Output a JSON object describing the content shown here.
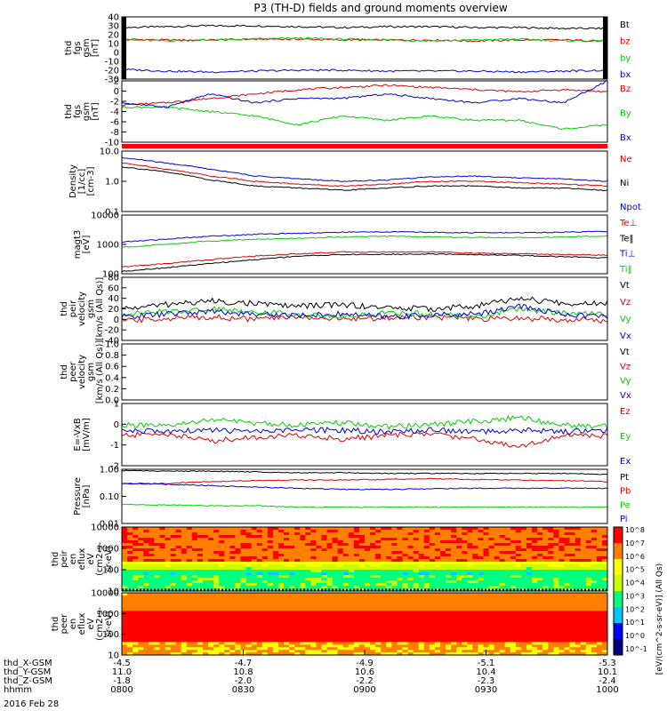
{
  "title": "P3 (TH-D) fields and ground moments overview",
  "date": "2016 Feb 28",
  "colors": {
    "black": "#000000",
    "red": "#e00000",
    "green": "#00d000",
    "blue": "#0000e0"
  },
  "colorbar_labels": [
    "10^8",
    "10^7",
    "10^6",
    "10^5",
    "10^4",
    "10^3",
    "10^2",
    "10^1",
    "10^0",
    "10^-1"
  ],
  "colorbar_unit": "[eV/(cm^2-s-sr-eV)] (All Qs)",
  "xaxis": {
    "rows": [
      {
        "label": "thd_X-GSM",
        "values": [
          "-4.5",
          "-4.7",
          "-4.9",
          "-5.1",
          "-5.3"
        ]
      },
      {
        "label": "thd_Y-GSM",
        "values": [
          "11.0",
          "10.8",
          "10.6",
          "10.4",
          "10.1"
        ]
      },
      {
        "label": "thd_Z-GSM",
        "values": [
          "-1.8",
          "-2.0",
          "-2.2",
          "-2.3",
          "-2.4"
        ]
      },
      {
        "label": "hhmm",
        "values": [
          "0800",
          "0830",
          "0900",
          "0930",
          "1000"
        ]
      }
    ]
  },
  "chart_data": [
    {
      "type": "line",
      "ylabel": [
        "thd",
        "fgs",
        "gsm",
        "[nT]"
      ],
      "ylim": [
        -30,
        40
      ],
      "ticks": [
        "40",
        "30",
        "20",
        "10",
        "0",
        "-10",
        "-20",
        "-30"
      ],
      "series": [
        {
          "name": "Bt",
          "color": "black",
          "values": [
            28,
            29,
            30,
            30,
            29,
            28,
            29,
            29,
            28,
            28,
            27,
            27
          ]
        },
        {
          "name": "bz",
          "color": "red",
          "values": [
            15,
            14,
            14,
            15,
            15,
            14,
            14,
            14,
            13,
            14,
            14,
            13
          ]
        },
        {
          "name": "by",
          "color": "green",
          "values": [
            14,
            13,
            14,
            15,
            16,
            15,
            14,
            13,
            14,
            15,
            13,
            13
          ]
        },
        {
          "name": "bx",
          "color": "blue",
          "values": [
            -19,
            -21,
            -22,
            -21,
            -20,
            -20,
            -21,
            -21,
            -21,
            -22,
            -21,
            -20
          ]
        }
      ]
    },
    {
      "type": "line",
      "ylabel": [
        "thd",
        "fgs",
        "gsm",
        "[nT]"
      ],
      "ylim": [
        -11,
        3
      ],
      "ticks": [
        "2",
        "0",
        "-2",
        "-4",
        "-6",
        "-8",
        "-10"
      ],
      "series": [
        {
          "name": "Bz",
          "color": "red",
          "values": [
            -2.5,
            -2,
            -1,
            0,
            1,
            1.5,
            2,
            1.5,
            1,
            0.5,
            1,
            0.5
          ]
        },
        {
          "name": "By",
          "color": "green",
          "values": [
            -3,
            -3,
            -4,
            -5,
            -7,
            -5,
            -6,
            -5,
            -6,
            -6,
            -8,
            -7
          ]
        },
        {
          "name": "Bx",
          "color": "blue",
          "values": [
            -2,
            -3,
            0,
            -2,
            -1,
            -1,
            0,
            -1,
            -2,
            -1,
            -2,
            3
          ]
        }
      ]
    },
    {
      "type": "line",
      "ylabel": [
        "Density",
        "[1/cc]",
        "[cm-3]"
      ],
      "ylim": [
        0.1,
        10
      ],
      "scale": "log",
      "ticks": [
        "10.0",
        "1.0",
        "0.1"
      ],
      "series": [
        {
          "name": "Ne",
          "color": "red",
          "values": [
            4,
            2.5,
            1.5,
            1,
            0.8,
            0.7,
            0.8,
            1,
            1,
            0.9,
            0.8,
            0.7
          ]
        },
        {
          "name": "Ni",
          "color": "black",
          "values": [
            3,
            2,
            1.1,
            0.7,
            0.6,
            0.5,
            0.6,
            0.7,
            0.7,
            0.6,
            0.6,
            0.5
          ]
        },
        {
          "name": "Npot",
          "color": "blue",
          "values": [
            6,
            4,
            2.5,
            1.5,
            1.2,
            1,
            1.1,
            1.4,
            1.5,
            1.3,
            1.2,
            1
          ]
        }
      ]
    },
    {
      "type": "line",
      "ylabel": [
        "magt3",
        "[eV]"
      ],
      "ylim": [
        100,
        10000
      ],
      "scale": "log",
      "ticks": [
        "10000",
        "1000",
        "100"
      ],
      "series": [
        {
          "name": "Te⊥",
          "color": "red",
          "values": [
            170,
            220,
            300,
            400,
            480,
            550,
            550,
            560,
            500,
            480,
            450,
            430
          ]
        },
        {
          "name": "Te‖",
          "color": "black",
          "values": [
            120,
            160,
            220,
            300,
            400,
            450,
            460,
            470,
            450,
            420,
            380,
            350
          ]
        },
        {
          "name": "Ti⊥",
          "color": "blue",
          "values": [
            1200,
            1500,
            1900,
            2200,
            2400,
            2600,
            2700,
            2600,
            2500,
            2500,
            2600,
            2800
          ]
        },
        {
          "name": "Ti‖",
          "color": "green",
          "values": [
            800,
            1000,
            1300,
            1500,
            1600,
            1800,
            1900,
            1800,
            1700,
            1700,
            1800,
            1900
          ]
        }
      ]
    },
    {
      "type": "line",
      "ylabel": [
        "thd",
        "peir",
        "velocity",
        "gsm",
        "[km/s (All Qs)]"
      ],
      "ylim": [
        -40,
        80
      ],
      "ticks": [
        "80",
        "60",
        "40",
        "20",
        "0",
        "-20",
        "-40"
      ],
      "series": [
        {
          "name": "Vt",
          "color": "black",
          "values": [
            20,
            28,
            35,
            30,
            25,
            28,
            22,
            20,
            25,
            40,
            30,
            32
          ]
        },
        {
          "name": "Vz",
          "color": "red",
          "values": [
            -3,
            2,
            5,
            0,
            5,
            0,
            3,
            5,
            0,
            2,
            0,
            -2
          ]
        },
        {
          "name": "Vy",
          "color": "green",
          "values": [
            10,
            15,
            20,
            15,
            10,
            5,
            12,
            10,
            5,
            20,
            12,
            10
          ]
        },
        {
          "name": "Vx",
          "color": "blue",
          "values": [
            5,
            10,
            15,
            10,
            8,
            10,
            5,
            8,
            10,
            25,
            10,
            5
          ]
        }
      ]
    },
    {
      "type": "line",
      "ylabel": [
        "thd",
        "peer",
        "velocity",
        "gsm",
        "[km/s (All Qs)]"
      ],
      "ylim": [
        0,
        1.0
      ],
      "ticks": [
        "1.0",
        "0.8",
        "0.6",
        "0.4",
        "0.2",
        "0.0"
      ],
      "series": [
        {
          "name": "Vt",
          "color": "black",
          "values": []
        },
        {
          "name": "Vz",
          "color": "red",
          "values": []
        },
        {
          "name": "Vy",
          "color": "green",
          "values": []
        },
        {
          "name": "Vx",
          "color": "blue",
          "values": []
        }
      ]
    },
    {
      "type": "line",
      "ylabel": [
        "E=-VxB",
        "[mV/m]"
      ],
      "ylim": [
        -2,
        1.5
      ],
      "ticks": [
        "1",
        "0",
        "-1",
        "-2"
      ],
      "series": [
        {
          "name": "Ez",
          "color": "red",
          "values": [
            -0.3,
            -0.2,
            -0.6,
            -0.4,
            -0.3,
            -0.5,
            -0.3,
            -0.2,
            -0.5,
            -0.9,
            -0.3,
            -0.3
          ]
        },
        {
          "name": "Ey",
          "color": "green",
          "values": [
            0.3,
            0.2,
            0.6,
            0.4,
            0.3,
            0.4,
            0.2,
            0.3,
            0.5,
            0.7,
            0.3,
            0.2
          ]
        },
        {
          "name": "Ex",
          "color": "blue",
          "values": [
            0.0,
            -0.1,
            0.0,
            -0.1,
            0.0,
            0.0,
            -0.1,
            0.0,
            -0.1,
            0.0,
            -0.1,
            0.0
          ]
        }
      ]
    },
    {
      "type": "line",
      "ylabel": [
        "Pressure",
        "[nPa]"
      ],
      "ylim": [
        0.01,
        1.0
      ],
      "scale": "log",
      "ticks": [
        "1.00",
        "0.10",
        "0.01"
      ],
      "series": [
        {
          "name": "Pt",
          "color": "black",
          "values": [
            0.9,
            0.85,
            0.85,
            0.8,
            0.75,
            0.75,
            0.7,
            0.7,
            0.7,
            0.7,
            0.7,
            0.65
          ]
        },
        {
          "name": "Pb",
          "color": "red",
          "values": [
            0.3,
            0.3,
            0.35,
            0.38,
            0.4,
            0.4,
            0.42,
            0.45,
            0.42,
            0.4,
            0.38,
            0.35
          ]
        },
        {
          "name": "Pe",
          "color": "green",
          "values": [
            0.05,
            0.048,
            0.045,
            0.045,
            0.04,
            0.04,
            0.04,
            0.04,
            0.04,
            0.04,
            0.04,
            0.04
          ]
        },
        {
          "name": "Pi",
          "color": "blue",
          "values": [
            0.3,
            0.28,
            0.25,
            0.22,
            0.2,
            0.18,
            0.18,
            0.19,
            0.2,
            0.2,
            0.2,
            0.2
          ]
        }
      ]
    },
    {
      "type": "heatmap",
      "ylabel": [
        "thd",
        "peir",
        "en",
        "eflux",
        "eV",
        "(cm2-s-",
        "sr-eV)"
      ],
      "ylim": [
        5,
        20000
      ],
      "scale": "log",
      "ticks": [
        "10000",
        "1000",
        "100",
        "10"
      ]
    },
    {
      "type": "heatmap",
      "ylabel": [
        "thd",
        "peer",
        "en",
        "eflux",
        "eV",
        "(cm2-s-",
        "sr-eV)"
      ],
      "ylim": [
        5,
        20000
      ],
      "scale": "log",
      "ticks": [
        "10000",
        "1000",
        "100",
        "10"
      ]
    }
  ]
}
